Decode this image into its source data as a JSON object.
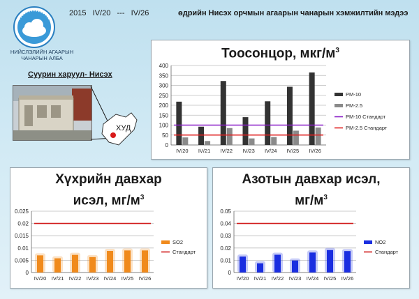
{
  "header": {
    "year_period": "2015   IV/20   ---   IV/26",
    "title": "өдрийн Нисэх орчмын агаарын чанарын хэмжилтийн мэдээ"
  },
  "org": {
    "name_line1": "НИЙСЛЭЛИЙН АГААРЫН",
    "name_line2": "ЧАНАРЫН АЛБА"
  },
  "station": {
    "label": "Суурин харуул- Нисэх",
    "district": "ХУД"
  },
  "colors": {
    "pm10": "#333333",
    "pm25": "#8a8a8a",
    "pm10_std": "#8a1ec8",
    "pm25_std": "#e02020",
    "so2": "#f08a1c",
    "no2": "#1a2ee0",
    "standard": "#d01818"
  },
  "chart_data": [
    {
      "type": "bar",
      "title": "Тоосонцор, мкг/м",
      "title_sup": "3",
      "categories": [
        "IV/20",
        "IV/21",
        "IV/22",
        "IV/23",
        "IV/24",
        "IV/25",
        "IV/26"
      ],
      "series": [
        {
          "name": "PM-10",
          "values": [
            218,
            92,
            322,
            140,
            220,
            293,
            365
          ]
        },
        {
          "name": "PM-2.5",
          "values": [
            38,
            20,
            85,
            33,
            40,
            72,
            88
          ]
        }
      ],
      "standards": [
        {
          "name": "PM-10 Стандарт",
          "value": 100
        },
        {
          "name": "PM-2.5 Стандарт",
          "value": 50
        }
      ],
      "ylim": [
        0,
        400
      ],
      "yticks": [
        "0",
        "50",
        "100",
        "150",
        "200",
        "250",
        "300",
        "350",
        "400"
      ],
      "legend": "right"
    },
    {
      "type": "bar",
      "title_line1": "Хүхрийн давхар",
      "title_line2": "исэл, мг/м",
      "title_sup": "3",
      "categories": [
        "IV/20",
        "IV/21",
        "IV/22",
        "IV/23",
        "IV/24",
        "IV/25",
        "IV/26"
      ],
      "series": [
        {
          "name": "SO2",
          "values": [
            0.007,
            0.0058,
            0.0072,
            0.0063,
            0.0088,
            0.009,
            0.009
          ]
        }
      ],
      "standards": [
        {
          "name": "Стандарт",
          "value": 0.02
        }
      ],
      "ylim": [
        0,
        0.025
      ],
      "yticks": [
        "0",
        "0.005",
        "0.01",
        "0.015",
        "0.02",
        "0.025"
      ],
      "legend": "right"
    },
    {
      "type": "bar",
      "title_line1": "Азотын давхар исэл,",
      "title_line2": "мг/м",
      "title_sup": "3",
      "categories": [
        "IV/20",
        "IV/21",
        "IV/22",
        "IV/23",
        "IV/24",
        "IV/25",
        "IV/26"
      ],
      "series": [
        {
          "name": "NO2",
          "values": [
            0.013,
            0.0075,
            0.0145,
            0.0098,
            0.0163,
            0.0183,
            0.0175
          ]
        }
      ],
      "standards": [
        {
          "name": "Стандарт",
          "value": 0.04
        }
      ],
      "ylim": [
        0,
        0.05
      ],
      "yticks": [
        "0",
        "0.01",
        "0.02",
        "0.03",
        "0.04",
        "0.05"
      ],
      "legend": "right"
    }
  ]
}
